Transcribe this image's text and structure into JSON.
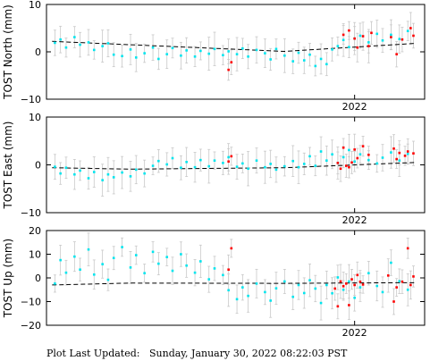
{
  "chart_data": [
    {
      "type": "scatter",
      "ylabel": "TOST North (mm)",
      "ylim": [
        -10,
        10
      ],
      "yticks": [
        "10",
        "0",
        "−10"
      ],
      "xtick_label": "2022",
      "xlim": [
        2020.9,
        2022.25
      ],
      "xtick": 2022.0,
      "trend": [
        [
          2020.92,
          2.2
        ],
        [
          2021.75,
          0.1
        ],
        [
          2022.22,
          1.8
        ]
      ],
      "series": [
        {
          "color": "#00e5ee",
          "points": [
            [
              2020.93,
              1.9
            ],
            [
              2020.95,
              2.6
            ],
            [
              2020.97,
              0.9
            ],
            [
              2021.0,
              3.1
            ],
            [
              2021.02,
              1.5
            ],
            [
              2021.05,
              2.0
            ],
            [
              2021.07,
              0.4
            ],
            [
              2021.1,
              1.2
            ],
            [
              2021.12,
              1.8
            ],
            [
              2021.14,
              -0.6
            ],
            [
              2021.17,
              -0.9
            ],
            [
              2021.2,
              0.5
            ],
            [
              2021.22,
              -1.2
            ],
            [
              2021.25,
              -0.3
            ],
            [
              2021.28,
              0.9
            ],
            [
              2021.3,
              -1.5
            ],
            [
              2021.33,
              -0.5
            ],
            [
              2021.35,
              0.8
            ],
            [
              2021.38,
              -0.8
            ],
            [
              2021.4,
              0.3
            ],
            [
              2021.43,
              -1.0
            ],
            [
              2021.45,
              0.2
            ],
            [
              2021.48,
              -0.4
            ],
            [
              2021.5,
              0.6
            ],
            [
              2021.53,
              -0.7
            ],
            [
              2021.55,
              0.1
            ],
            [
              2021.58,
              -0.5
            ],
            [
              2021.6,
              0.7
            ],
            [
              2021.62,
              -1.0
            ],
            [
              2021.65,
              0.4
            ],
            [
              2021.68,
              -0.3
            ],
            [
              2021.7,
              -1.6
            ],
            [
              2021.72,
              0.6
            ],
            [
              2021.75,
              -0.8
            ],
            [
              2021.78,
              -2.0
            ],
            [
              2021.8,
              -0.2
            ],
            [
              2021.82,
              -1.8
            ],
            [
              2021.84,
              -0.6
            ],
            [
              2021.86,
              -3.0
            ],
            [
              2021.88,
              -1.5
            ],
            [
              2021.9,
              -2.6
            ],
            [
              2021.92,
              0.5
            ],
            [
              2021.94,
              1.2
            ],
            [
              2021.96,
              2.5
            ],
            [
              2021.98,
              1.0
            ],
            [
              2022.0,
              2.8
            ],
            [
              2022.02,
              3.4
            ],
            [
              2022.05,
              2.0
            ],
            [
              2022.08,
              3.8
            ],
            [
              2022.1,
              2.4
            ],
            [
              2022.13,
              3.6
            ],
            [
              2022.16,
              2.7
            ],
            [
              2022.19,
              4.4
            ]
          ]
        },
        {
          "color": "#ff0000",
          "points": [
            [
              2021.55,
              -3.8
            ],
            [
              2021.56,
              -2.2
            ],
            [
              2021.96,
              3.6
            ],
            [
              2021.98,
              4.5
            ],
            [
              2022.0,
              2.8
            ],
            [
              2022.01,
              0.9
            ],
            [
              2022.03,
              3.3
            ],
            [
              2022.05,
              1.2
            ],
            [
              2022.06,
              4.0
            ],
            [
              2022.13,
              3.1
            ],
            [
              2022.15,
              -0.5
            ],
            [
              2022.17,
              2.6
            ],
            [
              2022.2,
              5.0
            ],
            [
              2022.21,
              3.4
            ]
          ]
        }
      ]
    },
    {
      "type": "scatter",
      "ylabel": "TOST East (mm)",
      "ylim": [
        -10,
        10
      ],
      "yticks": [
        "10",
        "0",
        "−10"
      ],
      "xtick_label": "2022",
      "xlim": [
        2020.9,
        2022.25
      ],
      "xtick": 2022.0,
      "trend": [
        [
          2020.92,
          -0.6
        ],
        [
          2021.2,
          -0.9
        ],
        [
          2021.75,
          -0.6
        ],
        [
          2022.22,
          0.5
        ]
      ],
      "series": [
        {
          "color": "#00e5ee",
          "points": [
            [
              2020.93,
              -0.4
            ],
            [
              2020.95,
              -1.8
            ],
            [
              2020.97,
              -0.6
            ],
            [
              2021.0,
              -2.0
            ],
            [
              2021.02,
              -1.2
            ],
            [
              2021.05,
              -2.8
            ],
            [
              2021.07,
              -1.5
            ],
            [
              2021.1,
              -3.2
            ],
            [
              2021.12,
              -2.0
            ],
            [
              2021.14,
              -2.6
            ],
            [
              2021.17,
              -1.6
            ],
            [
              2021.2,
              -2.4
            ],
            [
              2021.22,
              -1.0
            ],
            [
              2021.25,
              -1.8
            ],
            [
              2021.28,
              -0.2
            ],
            [
              2021.3,
              0.8
            ],
            [
              2021.33,
              0.1
            ],
            [
              2021.35,
              1.4
            ],
            [
              2021.38,
              -0.6
            ],
            [
              2021.4,
              0.6
            ],
            [
              2021.43,
              -0.5
            ],
            [
              2021.45,
              1.0
            ],
            [
              2021.48,
              -0.3
            ],
            [
              2021.5,
              0.9
            ],
            [
              2021.53,
              0.4
            ],
            [
              2021.55,
              1.6
            ],
            [
              2021.58,
              -0.4
            ],
            [
              2021.6,
              0.3
            ],
            [
              2021.62,
              -0.8
            ],
            [
              2021.65,
              0.9
            ],
            [
              2021.68,
              -0.5
            ],
            [
              2021.7,
              0.2
            ],
            [
              2021.72,
              -1.0
            ],
            [
              2021.75,
              -0.3
            ],
            [
              2021.78,
              0.8
            ],
            [
              2021.8,
              -0.5
            ],
            [
              2021.82,
              0.2
            ],
            [
              2021.84,
              1.8
            ],
            [
              2021.86,
              -0.2
            ],
            [
              2021.88,
              2.8
            ],
            [
              2021.9,
              0.9
            ],
            [
              2021.92,
              2.2
            ],
            [
              2021.94,
              0.4
            ],
            [
              2021.96,
              1.6
            ],
            [
              2021.98,
              3.1
            ],
            [
              2022.0,
              0.7
            ],
            [
              2022.02,
              2.2
            ],
            [
              2022.05,
              1.0
            ],
            [
              2022.08,
              0.3
            ],
            [
              2022.1,
              1.5
            ],
            [
              2022.13,
              2.6
            ],
            [
              2022.16,
              0.9
            ],
            [
              2022.19,
              2.3
            ]
          ]
        },
        {
          "color": "#ff0000",
          "points": [
            [
              2021.55,
              0.7
            ],
            [
              2021.56,
              1.8
            ],
            [
              2021.94,
              0.4
            ],
            [
              2021.95,
              -0.8
            ],
            [
              2021.96,
              3.6
            ],
            [
              2021.97,
              -0.2
            ],
            [
              2021.98,
              -0.5
            ],
            [
              2021.99,
              0.5
            ],
            [
              2022.0,
              3.2
            ],
            [
              2022.01,
              1.4
            ],
            [
              2022.03,
              3.9
            ],
            [
              2022.05,
              2.1
            ],
            [
              2022.14,
              3.4
            ],
            [
              2022.15,
              1.2
            ],
            [
              2022.16,
              2.5
            ],
            [
              2022.18,
              1.9
            ],
            [
              2022.19,
              2.8
            ],
            [
              2022.21,
              2.4
            ]
          ]
        }
      ]
    },
    {
      "type": "scatter",
      "ylabel": "TOST Up (mm)",
      "ylim": [
        -20,
        20
      ],
      "yticks": [
        "20",
        "10",
        "0",
        "−10",
        "−20"
      ],
      "xtick_label": "2022",
      "xlim": [
        2020.9,
        2022.25
      ],
      "xtick": 2022.0,
      "trend": [
        [
          2020.92,
          -3.0
        ],
        [
          2021.2,
          -2.2
        ],
        [
          2021.75,
          -2.3
        ],
        [
          2022.22,
          -2.0
        ]
      ],
      "series": [
        {
          "color": "#00e5ee",
          "points": [
            [
              2020.93,
              -2.4
            ],
            [
              2020.95,
              7.5
            ],
            [
              2020.97,
              2.2
            ],
            [
              2021.0,
              9.0
            ],
            [
              2021.02,
              3.5
            ],
            [
              2021.05,
              12.0
            ],
            [
              2021.07,
              1.4
            ],
            [
              2021.1,
              5.8
            ],
            [
              2021.12,
              -0.8
            ],
            [
              2021.14,
              8.4
            ],
            [
              2021.17,
              13.0
            ],
            [
              2021.2,
              4.4
            ],
            [
              2021.22,
              9.6
            ],
            [
              2021.25,
              2.0
            ],
            [
              2021.28,
              11.0
            ],
            [
              2021.3,
              6.0
            ],
            [
              2021.33,
              8.8
            ],
            [
              2021.35,
              3.0
            ],
            [
              2021.38,
              10.0
            ],
            [
              2021.4,
              5.2
            ],
            [
              2021.43,
              2.2
            ],
            [
              2021.45,
              7.0
            ],
            [
              2021.48,
              -0.6
            ],
            [
              2021.5,
              4.0
            ],
            [
              2021.53,
              1.2
            ],
            [
              2021.55,
              -5.2
            ],
            [
              2021.58,
              -9.0
            ],
            [
              2021.6,
              -4.0
            ],
            [
              2021.62,
              -7.6
            ],
            [
              2021.65,
              -2.4
            ],
            [
              2021.68,
              -6.0
            ],
            [
              2021.7,
              -9.6
            ],
            [
              2021.72,
              -4.4
            ],
            [
              2021.75,
              -1.5
            ],
            [
              2021.78,
              -8.0
            ],
            [
              2021.8,
              -3.0
            ],
            [
              2021.82,
              -6.4
            ],
            [
              2021.84,
              -1.0
            ],
            [
              2021.86,
              -4.5
            ],
            [
              2021.88,
              -10.6
            ],
            [
              2021.9,
              -3.0
            ],
            [
              2021.92,
              -6.5
            ],
            [
              2021.94,
              0.2
            ],
            [
              2021.96,
              -5.0
            ],
            [
              2021.98,
              -1.5
            ],
            [
              2022.0,
              -8.4
            ],
            [
              2022.02,
              -4.0
            ],
            [
              2022.05,
              2.0
            ],
            [
              2022.08,
              -3.4
            ],
            [
              2022.1,
              -6.0
            ],
            [
              2022.13,
              6.4
            ],
            [
              2022.16,
              -1.4
            ],
            [
              2022.19,
              -5.0
            ]
          ]
        },
        {
          "color": "#ff0000",
          "points": [
            [
              2021.55,
              3.5
            ],
            [
              2021.56,
              12.5
            ],
            [
              2021.93,
              -4.5
            ],
            [
              2021.94,
              -12.0
            ],
            [
              2021.95,
              -1.5
            ],
            [
              2021.96,
              -3.5
            ],
            [
              2021.97,
              -2.4
            ],
            [
              2021.98,
              -11.5
            ],
            [
              2021.99,
              -0.6
            ],
            [
              2022.0,
              -3.0
            ],
            [
              2022.01,
              1.2
            ],
            [
              2022.02,
              -1.6
            ],
            [
              2022.03,
              -2.8
            ],
            [
              2022.12,
              1.0
            ],
            [
              2022.14,
              -10.0
            ],
            [
              2022.15,
              -4.0
            ],
            [
              2022.17,
              -1.6
            ],
            [
              2022.19,
              12.5
            ],
            [
              2022.2,
              -3.0
            ],
            [
              2022.21,
              0.6
            ]
          ]
        }
      ]
    }
  ],
  "footer": {
    "label": "Plot Last Updated:",
    "date": "Sunday, January 30, 2022 08:22:03 PST"
  }
}
